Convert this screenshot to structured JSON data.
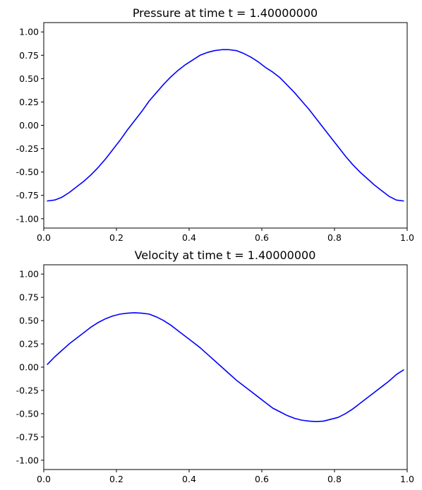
{
  "chart_data": [
    {
      "type": "line",
      "title": "Pressure at time t =     1.40000000",
      "xlabel": "",
      "ylabel": "",
      "xlim": [
        0.0,
        1.0
      ],
      "ylim": [
        -1.1,
        1.1
      ],
      "xticks": [
        "0.0",
        "0.2",
        "0.4",
        "0.6",
        "0.8",
        "1.0"
      ],
      "yticks": [
        "-1.00",
        "-0.75",
        "-0.50",
        "-0.25",
        "0.00",
        "0.25",
        "0.50",
        "0.75",
        "1.00"
      ],
      "grid": false,
      "series": [
        {
          "color": "#0000ff",
          "x": [
            0.01,
            0.03,
            0.05,
            0.07,
            0.09,
            0.11,
            0.13,
            0.15,
            0.17,
            0.19,
            0.21,
            0.23,
            0.25,
            0.27,
            0.29,
            0.31,
            0.33,
            0.35,
            0.37,
            0.39,
            0.41,
            0.43,
            0.45,
            0.47,
            0.49,
            0.51,
            0.53,
            0.55,
            0.57,
            0.59,
            0.61,
            0.63,
            0.65,
            0.67,
            0.69,
            0.71,
            0.73,
            0.75,
            0.77,
            0.79,
            0.81,
            0.83,
            0.85,
            0.87,
            0.89,
            0.91,
            0.93,
            0.95,
            0.97,
            0.99
          ],
          "y": [
            -0.81,
            -0.8,
            -0.77,
            -0.72,
            -0.66,
            -0.6,
            -0.53,
            -0.45,
            -0.36,
            -0.26,
            -0.16,
            -0.05,
            0.05,
            0.15,
            0.26,
            0.35,
            0.44,
            0.52,
            0.59,
            0.65,
            0.7,
            0.75,
            0.78,
            0.8,
            0.81,
            0.81,
            0.8,
            0.77,
            0.73,
            0.68,
            0.62,
            0.57,
            0.51,
            0.43,
            0.35,
            0.26,
            0.17,
            0.07,
            -0.03,
            -0.13,
            -0.23,
            -0.33,
            -0.42,
            -0.5,
            -0.57,
            -0.64,
            -0.7,
            -0.76,
            -0.8,
            -0.81
          ]
        }
      ]
    },
    {
      "type": "line",
      "title": "Velocity at time t =     1.40000000",
      "xlabel": "",
      "ylabel": "",
      "xlim": [
        0.0,
        1.0
      ],
      "ylim": [
        -1.1,
        1.1
      ],
      "xticks": [
        "0.0",
        "0.2",
        "0.4",
        "0.6",
        "0.8",
        "1.0"
      ],
      "yticks": [
        "-1.00",
        "-0.75",
        "-0.50",
        "-0.25",
        "0.00",
        "0.25",
        "0.50",
        "0.75",
        "1.00"
      ],
      "grid": false,
      "series": [
        {
          "color": "#0000ff",
          "x": [
            0.01,
            0.03,
            0.05,
            0.07,
            0.09,
            0.11,
            0.13,
            0.15,
            0.17,
            0.19,
            0.21,
            0.23,
            0.25,
            0.27,
            0.29,
            0.31,
            0.33,
            0.35,
            0.37,
            0.39,
            0.41,
            0.43,
            0.45,
            0.47,
            0.49,
            0.51,
            0.53,
            0.55,
            0.57,
            0.59,
            0.61,
            0.63,
            0.65,
            0.67,
            0.69,
            0.71,
            0.73,
            0.75,
            0.77,
            0.79,
            0.81,
            0.83,
            0.85,
            0.87,
            0.89,
            0.91,
            0.93,
            0.95,
            0.97,
            0.99
          ],
          "y": [
            0.03,
            0.11,
            0.18,
            0.25,
            0.31,
            0.37,
            0.43,
            0.48,
            0.52,
            0.55,
            0.57,
            0.58,
            0.585,
            0.58,
            0.57,
            0.54,
            0.5,
            0.45,
            0.39,
            0.33,
            0.27,
            0.21,
            0.14,
            0.07,
            0.0,
            -0.07,
            -0.14,
            -0.2,
            -0.26,
            -0.32,
            -0.38,
            -0.44,
            -0.48,
            -0.52,
            -0.55,
            -0.57,
            -0.58,
            -0.585,
            -0.58,
            -0.56,
            -0.54,
            -0.5,
            -0.45,
            -0.39,
            -0.33,
            -0.27,
            -0.21,
            -0.15,
            -0.08,
            -0.03
          ]
        }
      ]
    }
  ]
}
